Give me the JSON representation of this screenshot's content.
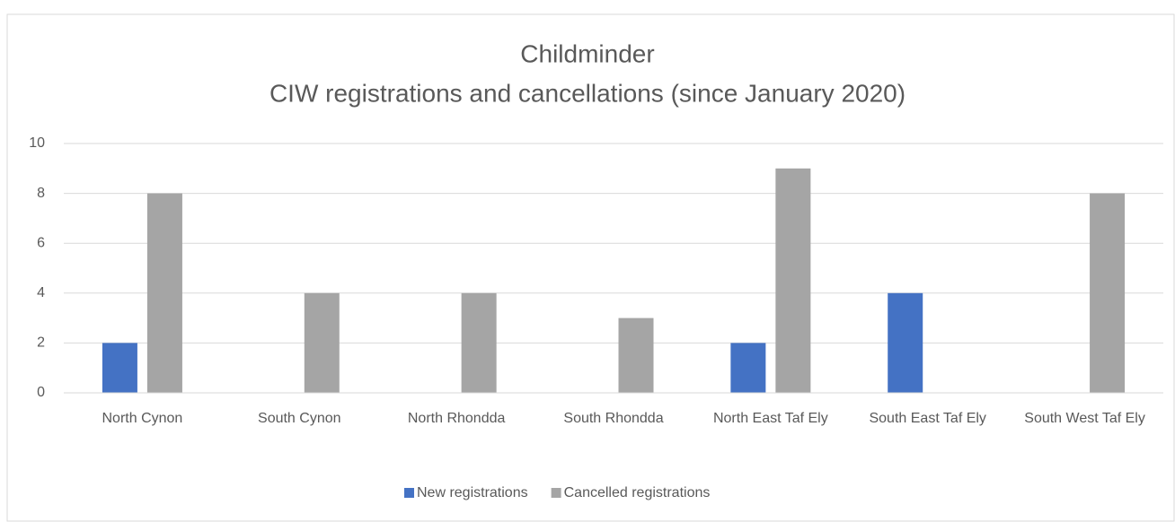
{
  "chart_data": {
    "type": "bar",
    "title": "Childminder",
    "subtitle": "CIW registrations and cancellations (since January 2020)",
    "categories": [
      "North Cynon",
      "South Cynon",
      "North Rhondda",
      "South Rhondda",
      "North East Taf Ely",
      "South East Taf Ely",
      "South West Taf Ely"
    ],
    "series": [
      {
        "name": "New registrations",
        "color": "#4472c4",
        "values": [
          2,
          0,
          0,
          0,
          2,
          4,
          0
        ]
      },
      {
        "name": "Cancelled registrations",
        "color": "#a5a5a5",
        "values": [
          8,
          4,
          4,
          3,
          9,
          0,
          8
        ]
      }
    ],
    "ylim": [
      0,
      10
    ],
    "yticks": [
      0,
      2,
      4,
      6,
      8,
      10
    ],
    "grid": true,
    "legend": "bottom"
  }
}
